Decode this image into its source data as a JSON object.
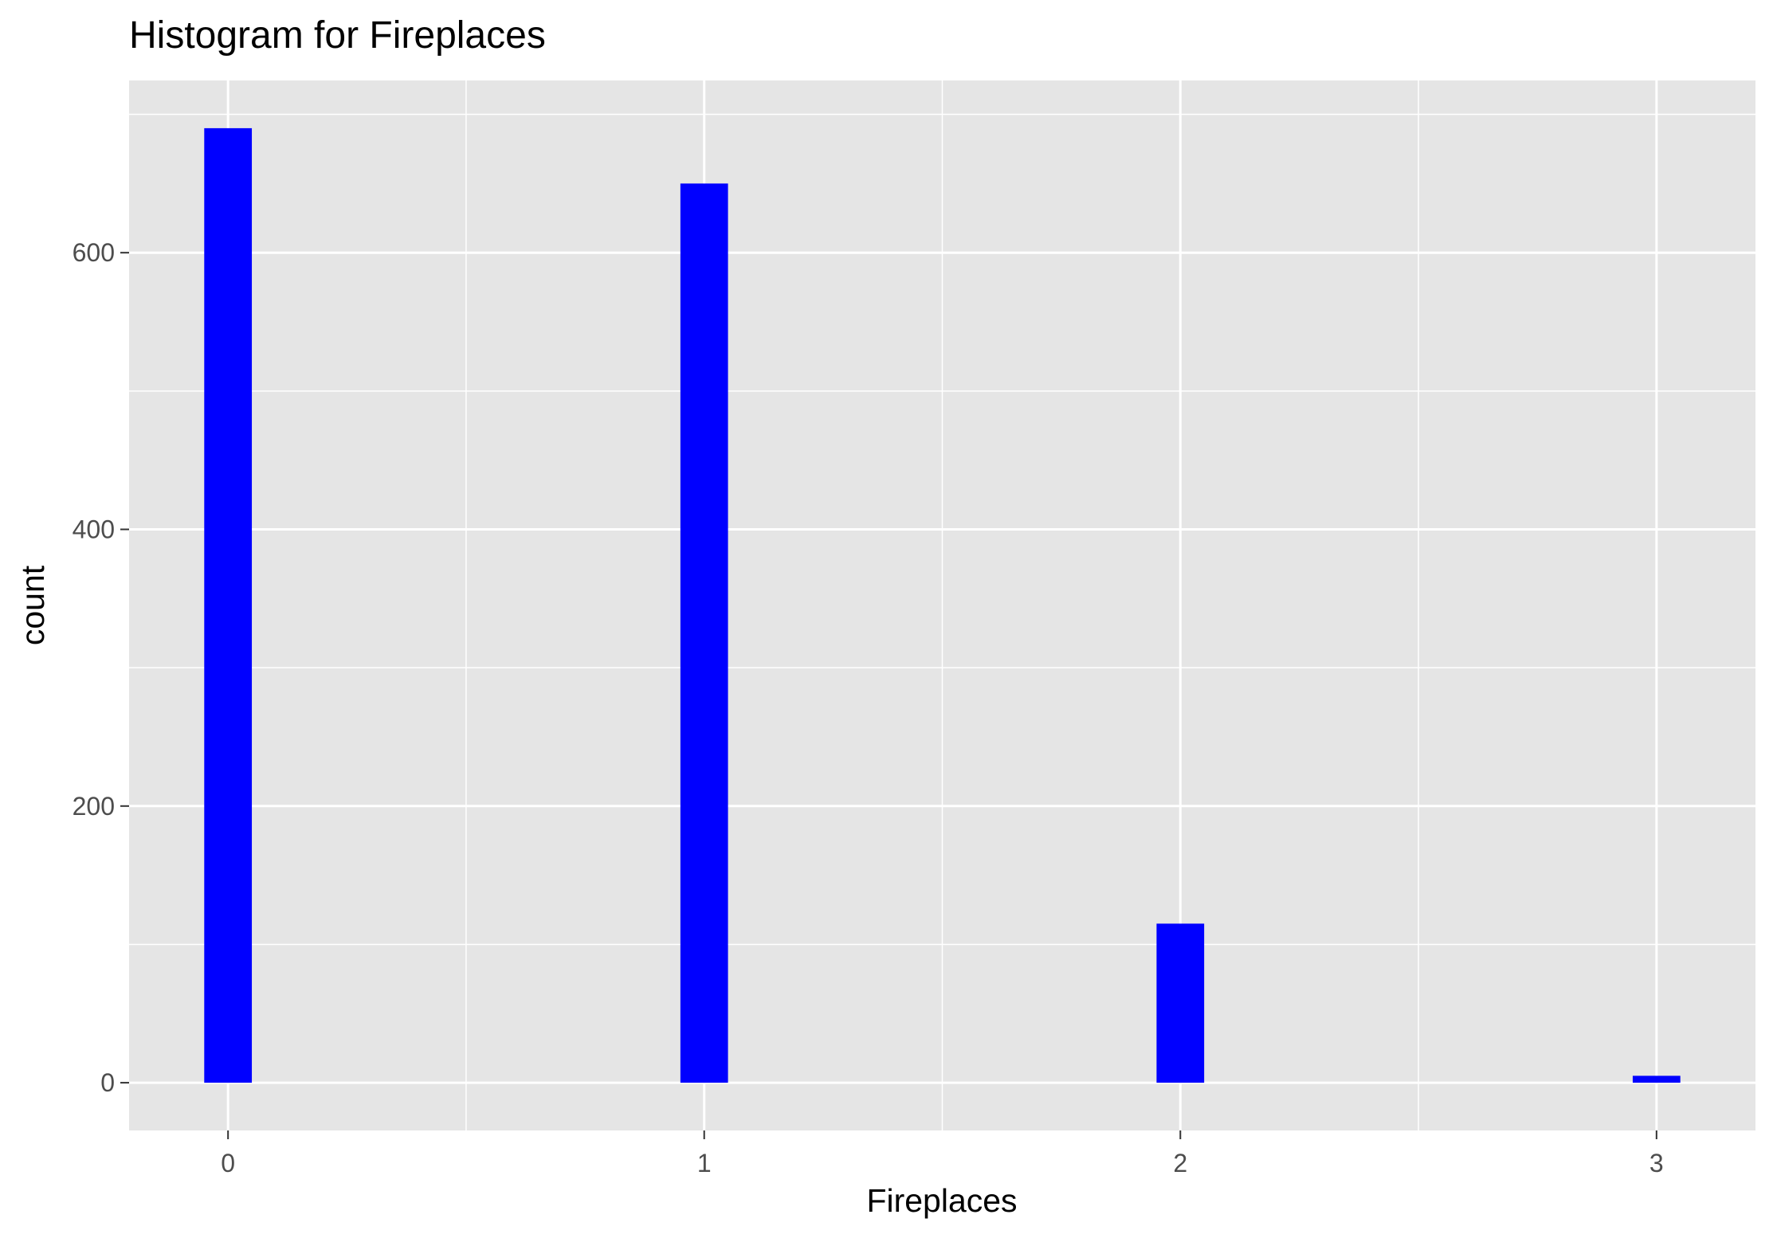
{
  "chart_data": {
    "type": "bar",
    "title": "Histogram for Fireplaces",
    "xlabel": "Fireplaces",
    "ylabel": "count",
    "categories": [
      "0",
      "1",
      "2",
      "3"
    ],
    "x": [
      0,
      1,
      2,
      3
    ],
    "values": [
      690,
      650,
      115,
      5
    ],
    "bar_width": 0.1,
    "xlim": [
      -0.2078,
      3.2078
    ],
    "ylim": [
      -34.5,
      724.5
    ],
    "x_ticks": [
      0,
      1,
      2,
      3
    ],
    "x_tick_labels": [
      "0",
      "1",
      "2",
      "3"
    ],
    "x_minor_grid": [
      0.5,
      1.5,
      2.5
    ],
    "y_ticks": [
      0,
      200,
      400,
      600
    ],
    "y_tick_labels": [
      "0",
      "200",
      "400",
      "600"
    ],
    "y_minor_grid": [
      100,
      300,
      500,
      700
    ],
    "grid": true,
    "legend": "none",
    "colors": {
      "bar_fill": "#0000ff",
      "panel_background": "#e5e5e5",
      "grid_line": "#ffffff",
      "tick_text": "#4d4d4d",
      "tick_mark": "#333333",
      "title_text": "#000000"
    }
  }
}
